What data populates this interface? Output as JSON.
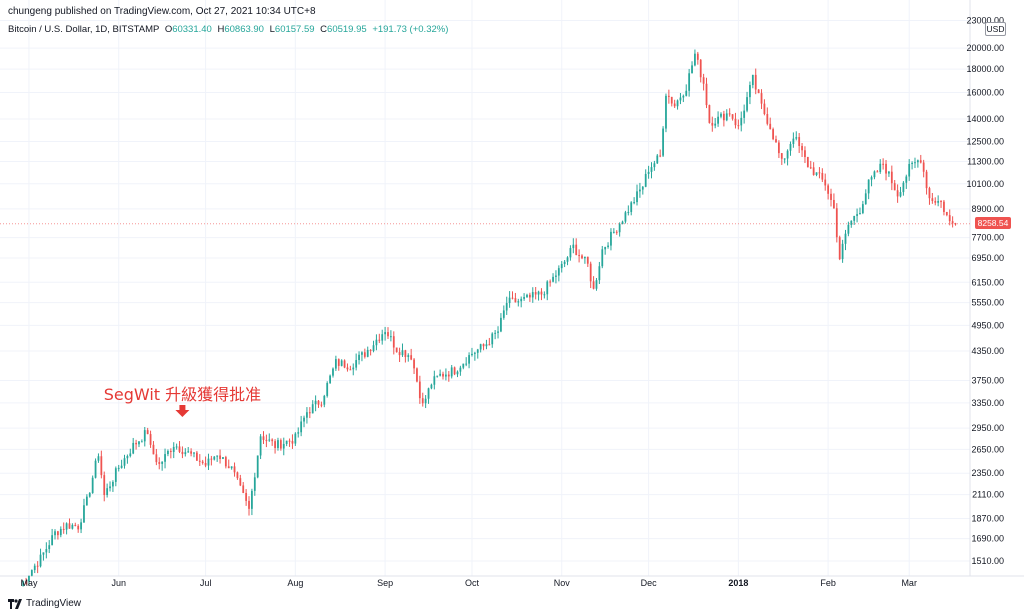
{
  "header": {
    "publisher_line": "chungeng published on TradingView.com, Oct 27, 2021 10:34 UTC+8",
    "symbol_line": "Bitcoin / U.S. Dollar, 1D, BITSTAMP",
    "ohlc": [
      {
        "label": "O",
        "value": "60331.40"
      },
      {
        "label": "H",
        "value": "60863.90"
      },
      {
        "label": "L",
        "value": "60157.59"
      },
      {
        "label": "C",
        "value": "60519.95"
      }
    ],
    "change": "+191.73 (+0.32%)"
  },
  "price_axis": {
    "unit_badge": "USD",
    "last_price": "8258.54"
  },
  "brand": {
    "name": "TradingView"
  },
  "colors": {
    "up": "#26a69a",
    "down": "#ef5350",
    "annotation": "#e53935",
    "grid": "#f0f3fa"
  },
  "chart_data": {
    "type": "candlestick",
    "title": "",
    "scale": "log",
    "ylim": [
      1400,
      24000
    ],
    "y_ticks": [
      "1510.00",
      "1690.00",
      "1870.00",
      "2110.00",
      "2350.00",
      "2650.00",
      "2950.00",
      "3350.00",
      "3750.00",
      "4350.00",
      "4950.00",
      "5550.00",
      "6150.00",
      "6950.00",
      "7700.00",
      "8900.00",
      "10100.00",
      "11300.00",
      "12500.00",
      "14000.00",
      "16000.00",
      "18000.00",
      "20000.00",
      "23000.00"
    ],
    "x_ticks": [
      {
        "label": "May",
        "date": "2017-05-01",
        "bold": false
      },
      {
        "label": "Jun",
        "date": "2017-06-01",
        "bold": false
      },
      {
        "label": "Jul",
        "date": "2017-07-01",
        "bold": false
      },
      {
        "label": "Aug",
        "date": "2017-08-01",
        "bold": false
      },
      {
        "label": "Sep",
        "date": "2017-09-01",
        "bold": false
      },
      {
        "label": "Oct",
        "date": "2017-10-01",
        "bold": false
      },
      {
        "label": "Nov",
        "date": "2017-11-01",
        "bold": false
      },
      {
        "label": "Dec",
        "date": "2017-12-01",
        "bold": false
      },
      {
        "label": "2018",
        "date": "2018-01-01",
        "bold": true
      },
      {
        "label": "Feb",
        "date": "2018-02-01",
        "bold": false
      },
      {
        "label": "Mar",
        "date": "2018-03-01",
        "bold": false
      }
    ],
    "close_path": [
      [
        "2017-04-28",
        1330
      ],
      [
        "2017-05-01",
        1420
      ],
      [
        "2017-05-05",
        1530
      ],
      [
        "2017-05-10",
        1740
      ],
      [
        "2017-05-14",
        1810
      ],
      [
        "2017-05-18",
        1800
      ],
      [
        "2017-05-21",
        2040
      ],
      [
        "2017-05-25",
        2600
      ],
      [
        "2017-05-27",
        2100
      ],
      [
        "2017-06-01",
        2420
      ],
      [
        "2017-06-06",
        2700
      ],
      [
        "2017-06-11",
        2900
      ],
      [
        "2017-06-12",
        2660
      ],
      [
        "2017-06-15",
        2450
      ],
      [
        "2017-06-20",
        2720
      ],
      [
        "2017-06-25",
        2600
      ],
      [
        "2017-07-01",
        2450
      ],
      [
        "2017-07-05",
        2600
      ],
      [
        "2017-07-10",
        2400
      ],
      [
        "2017-07-16",
        1950
      ],
      [
        "2017-07-20",
        2850
      ],
      [
        "2017-07-25",
        2700
      ],
      [
        "2017-08-01",
        2800
      ],
      [
        "2017-08-05",
        3200
      ],
      [
        "2017-08-10",
        3400
      ],
      [
        "2017-08-15",
        4100
      ],
      [
        "2017-08-20",
        4050
      ],
      [
        "2017-08-25",
        4300
      ],
      [
        "2017-09-01",
        4850
      ],
      [
        "2017-09-05",
        4400
      ],
      [
        "2017-09-10",
        4250
      ],
      [
        "2017-09-14",
        3300
      ],
      [
        "2017-09-17",
        3700
      ],
      [
        "2017-09-20",
        3850
      ],
      [
        "2017-09-25",
        3950
      ],
      [
        "2017-10-01",
        4300
      ],
      [
        "2017-10-05",
        4450
      ],
      [
        "2017-10-10",
        4800
      ],
      [
        "2017-10-13",
        5550
      ],
      [
        "2017-10-18",
        5600
      ],
      [
        "2017-10-25",
        5800
      ],
      [
        "2017-11-01",
        6650
      ],
      [
        "2017-11-05",
        7350
      ],
      [
        "2017-11-10",
        6700
      ],
      [
        "2017-11-12",
        5900
      ],
      [
        "2017-11-15",
        7250
      ],
      [
        "2017-11-20",
        8100
      ],
      [
        "2017-11-26",
        9300
      ],
      [
        "2017-11-29",
        10000
      ],
      [
        "2017-12-01",
        10900
      ],
      [
        "2017-12-05",
        11600
      ],
      [
        "2017-12-07",
        16000
      ],
      [
        "2017-12-10",
        15000
      ],
      [
        "2017-12-14",
        16500
      ],
      [
        "2017-12-17",
        19400
      ],
      [
        "2017-12-20",
        16800
      ],
      [
        "2017-12-22",
        13800
      ],
      [
        "2017-12-25",
        14000
      ],
      [
        "2017-12-29",
        14500
      ],
      [
        "2018-01-01",
        13400
      ],
      [
        "2018-01-03",
        14800
      ],
      [
        "2018-01-06",
        17100
      ],
      [
        "2018-01-09",
        14900
      ],
      [
        "2018-01-12",
        13500
      ],
      [
        "2018-01-16",
        11200
      ],
      [
        "2018-01-20",
        12900
      ],
      [
        "2018-01-25",
        11100
      ],
      [
        "2018-01-31",
        10100
      ],
      [
        "2018-02-03",
        8900
      ],
      [
        "2018-02-05",
        6950
      ],
      [
        "2018-02-08",
        8200
      ],
      [
        "2018-02-12",
        8900
      ],
      [
        "2018-02-15",
        10100
      ],
      [
        "2018-02-20",
        11200
      ],
      [
        "2018-02-25",
        9600
      ],
      [
        "2018-03-01",
        10900
      ],
      [
        "2018-03-05",
        11500
      ],
      [
        "2018-03-08",
        9400
      ],
      [
        "2018-03-12",
        9200
      ],
      [
        "2018-03-15",
        8300
      ],
      [
        "2018-03-17",
        8258
      ]
    ],
    "annotations": [
      {
        "text": "SegWit 升級獲得批准",
        "date": "2017-06-23",
        "arrow": "down",
        "color": "#e53935"
      }
    ]
  }
}
